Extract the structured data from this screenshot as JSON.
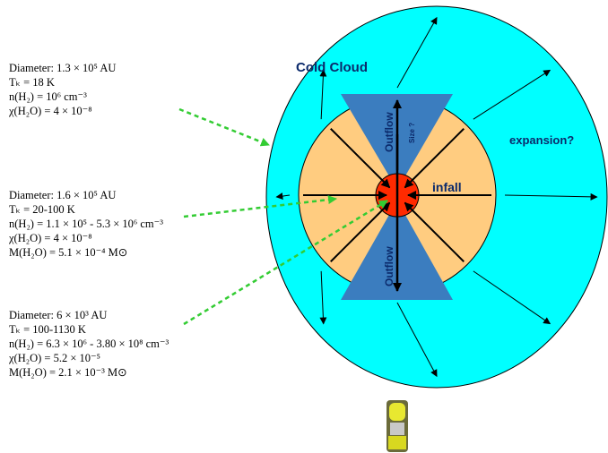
{
  "labels": {
    "cold_cloud": "Cold Cloud",
    "expansion": "expansion?",
    "infall": "infall",
    "outflow_top": "Outflow",
    "size": "Size ?",
    "outflow_bottom": "Outflow"
  },
  "regions": [
    {
      "lines": [
        "Diameter: 1.3 × 10⁵ AU",
        "Tₖ = 18 K",
        "n(H₂) = 10⁶ cm⁻³",
        "χ(H₂O) = 4 × 10⁻⁸"
      ]
    },
    {
      "lines": [
        "Diameter: 1.6 × 10⁵ AU",
        "Tₖ = 20-100 K",
        "n(H₂) = 1.1 × 10⁵ - 5.3 × 10⁶ cm⁻³",
        "χ(H₂O) = 4 × 10⁻⁸",
        "M(H₂O) = 5.1 × 10⁻⁴ M⊙"
      ]
    },
    {
      "lines": [
        "Diameter: 6 × 10³ AU",
        "Tₖ = 100-1130 K",
        "n(H₂) = 6.3 × 10⁶ - 3.80 × 10⁸ cm⁻³",
        "χ(H₂O) = 5.2 × 10⁻⁵",
        "M(H₂O) = 2.1 × 10⁻³ M⊙"
      ]
    }
  ]
}
